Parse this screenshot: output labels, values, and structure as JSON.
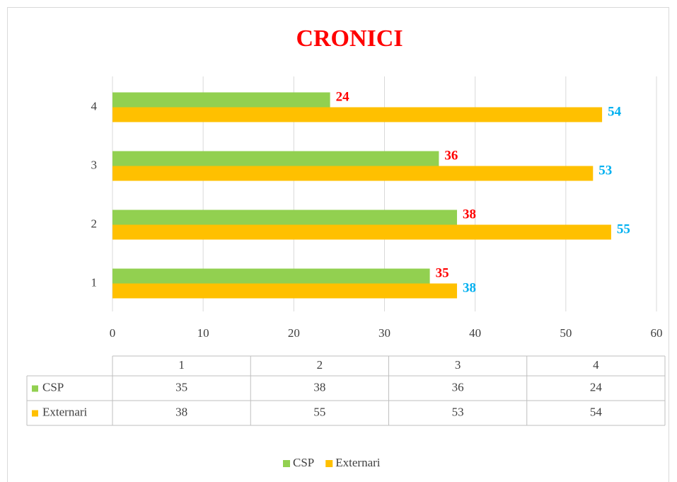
{
  "chart_data": {
    "type": "bar",
    "orientation": "horizontal",
    "title": "CRONICI",
    "categories": [
      "1",
      "2",
      "3",
      "4"
    ],
    "series": [
      {
        "name": "CSP",
        "color": "#92d050",
        "label_color": "#ff0000",
        "values": [
          35,
          38,
          36,
          24
        ]
      },
      {
        "name": "Externari",
        "color": "#ffc000",
        "label_color": "#00b0f0",
        "values": [
          38,
          55,
          53,
          54
        ]
      }
    ],
    "xlim": [
      0,
      60
    ],
    "xticks": [
      0,
      10,
      20,
      30,
      40,
      50,
      60
    ],
    "grid": true,
    "data_table": true,
    "legend": "bottom"
  }
}
